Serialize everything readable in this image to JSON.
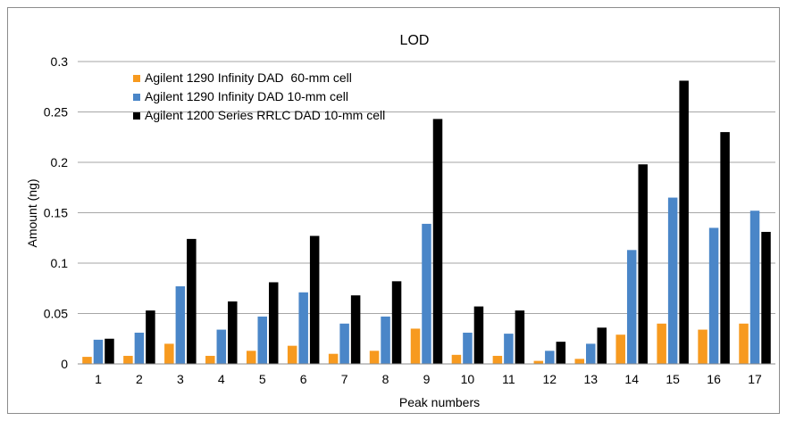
{
  "chart_data": {
    "type": "bar",
    "title": "LOD",
    "xlabel": "Peak numbers",
    "ylabel": "Amount (ng)",
    "ylim": [
      0,
      0.3
    ],
    "yticks": [
      "0",
      "0.05",
      "0.1",
      "0.15",
      "0.2",
      "0.25",
      "0.3"
    ],
    "ytick_values": [
      0,
      0.05,
      0.1,
      0.15,
      0.2,
      0.25,
      0.3
    ],
    "grid": true,
    "legend_position": "top-left",
    "categories": [
      "1",
      "2",
      "3",
      "4",
      "5",
      "6",
      "7",
      "8",
      "9",
      "10",
      "11",
      "12",
      "13",
      "14",
      "15",
      "16",
      "17"
    ],
    "series": [
      {
        "name": "Agilent 1290 Infinity DAD  60-mm cell",
        "color": "#f79a1f",
        "values": [
          0.007,
          0.008,
          0.02,
          0.008,
          0.013,
          0.018,
          0.01,
          0.013,
          0.035,
          0.009,
          0.008,
          0.003,
          0.005,
          0.029,
          0.04,
          0.034,
          0.04
        ]
      },
      {
        "name": "Agilent 1290 Infinity DAD 10-mm cell",
        "color": "#4a86c8",
        "values": [
          0.024,
          0.031,
          0.077,
          0.034,
          0.047,
          0.071,
          0.04,
          0.047,
          0.139,
          0.031,
          0.03,
          0.013,
          0.02,
          0.113,
          0.165,
          0.135,
          0.152
        ]
      },
      {
        "name": "Agilent 1200 Series RRLC DAD 10-mm cell",
        "color": "#000000",
        "values": [
          0.025,
          0.053,
          0.124,
          0.062,
          0.081,
          0.127,
          0.068,
          0.082,
          0.243,
          0.057,
          0.053,
          0.022,
          0.036,
          0.198,
          0.281,
          0.23,
          0.131
        ]
      }
    ]
  }
}
